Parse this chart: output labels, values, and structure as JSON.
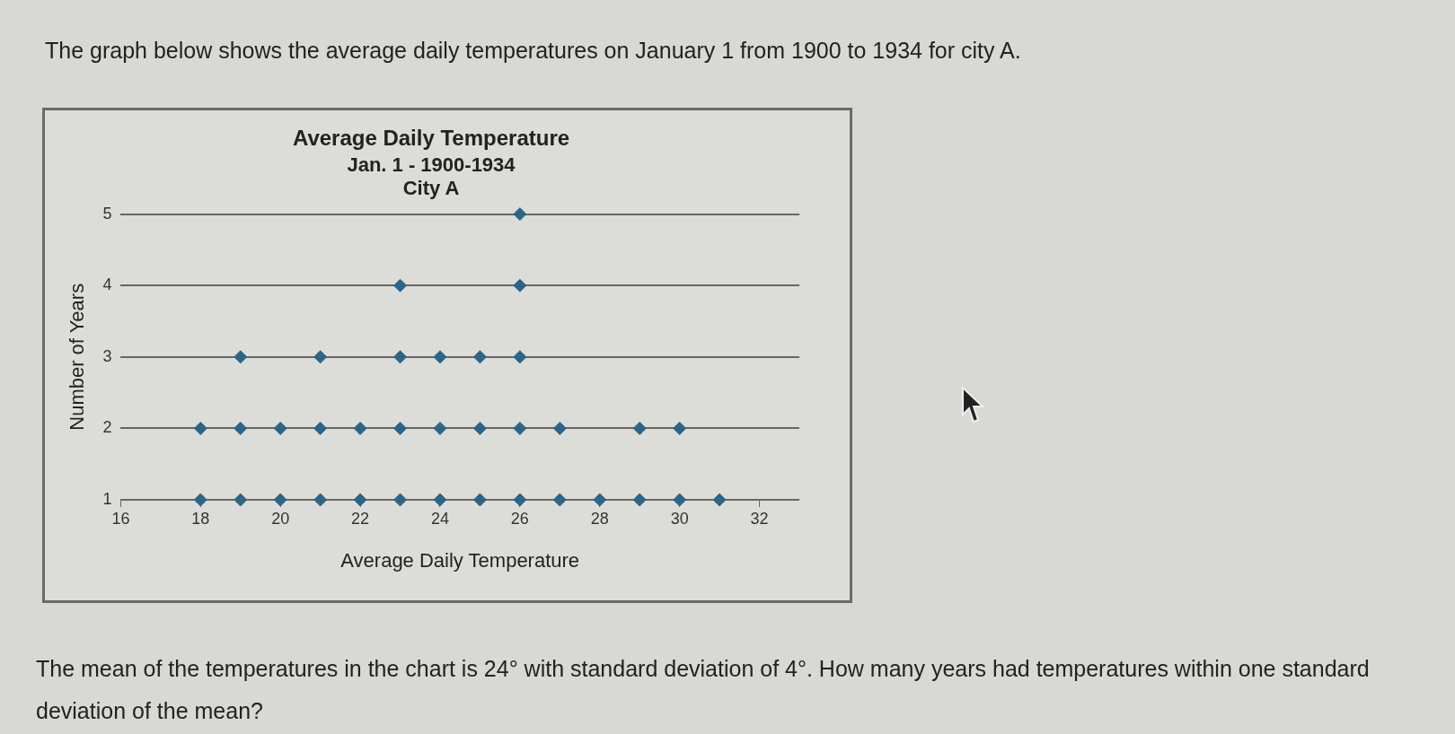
{
  "chart_data": {
    "type": "scatter",
    "title": "Average Daily Temperature",
    "subtitle": "Jan. 1 - 1900-1934\nCity A",
    "xlabel": "Average Daily Temperature",
    "ylabel": "Number of Years",
    "x": [
      18,
      19,
      20,
      21,
      22,
      23,
      24,
      25,
      26,
      27,
      28,
      29,
      30,
      31,
      18,
      19,
      20,
      21,
      22,
      23,
      24,
      25,
      26,
      27,
      29,
      30,
      19,
      21,
      23,
      24,
      25,
      26,
      23,
      26,
      26
    ],
    "values": [
      1,
      1,
      1,
      1,
      1,
      1,
      1,
      1,
      1,
      1,
      1,
      1,
      1,
      1,
      2,
      2,
      2,
      2,
      2,
      2,
      2,
      2,
      2,
      2,
      2,
      2,
      3,
      3,
      3,
      3,
      3,
      3,
      4,
      4,
      5
    ],
    "color": "#2b6688",
    "marker": "diamond",
    "grid": "y",
    "xlim": [
      16,
      33
    ],
    "xticks": [
      16,
      18,
      20,
      22,
      24,
      26,
      28,
      30,
      32
    ],
    "ylim": [
      1,
      5
    ],
    "yticks": [
      1,
      2,
      3,
      4,
      5
    ],
    "annotations": [
      "The graph below shows the average daily temperatures on January 1 from 1900 to 1934 for city A.",
      "The mean of the temperatures in the chart is 24° with standard deviation of 4°. How many years had temperatures within one standard deviation of the mean?"
    ]
  }
}
